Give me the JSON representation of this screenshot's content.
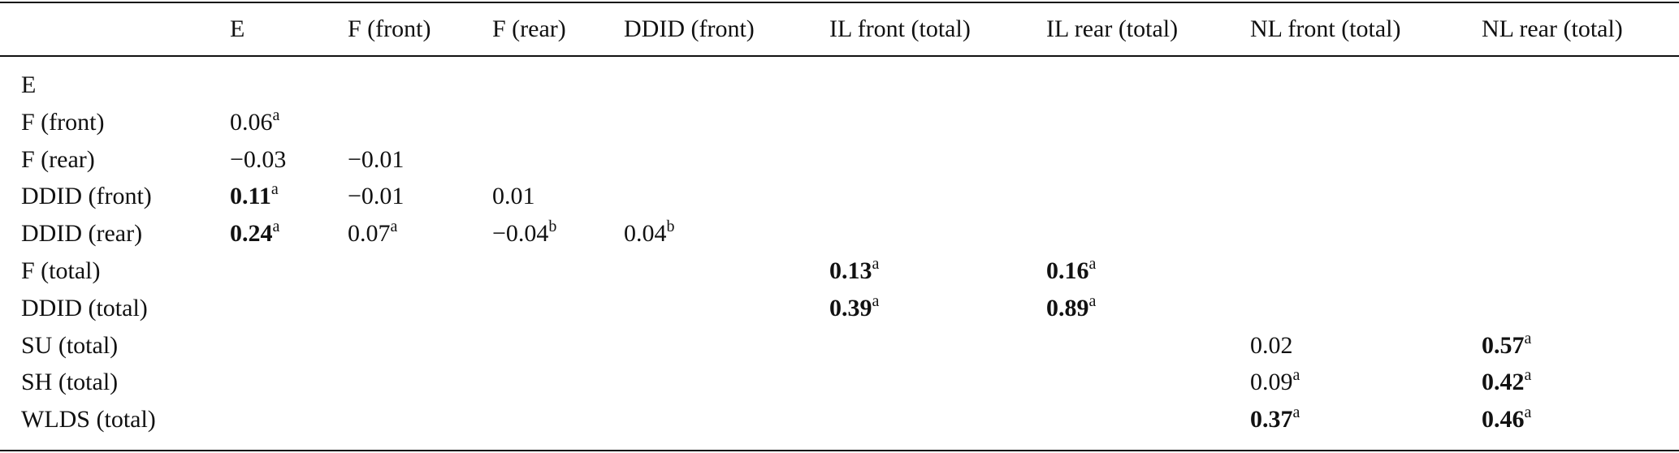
{
  "table": {
    "columns": [
      "E",
      "F (front)",
      "F (rear)",
      "DDID (front)",
      "IL front (total)",
      "IL rear (total)",
      "NL front (total)",
      "NL rear (total)"
    ],
    "rows": [
      {
        "label": "E",
        "cells": [
          null,
          null,
          null,
          null,
          null,
          null,
          null,
          null
        ]
      },
      {
        "label": "F (front)",
        "cells": [
          {
            "value": "0.06",
            "sup": "a",
            "bold": false
          },
          null,
          null,
          null,
          null,
          null,
          null,
          null
        ]
      },
      {
        "label": "F (rear)",
        "cells": [
          {
            "value": "−0.03",
            "bold": false
          },
          {
            "value": "−0.01",
            "bold": false
          },
          null,
          null,
          null,
          null,
          null,
          null
        ]
      },
      {
        "label": "DDID (front)",
        "cells": [
          {
            "value": "0.11",
            "sup": "a",
            "bold": true
          },
          {
            "value": "−0.01",
            "bold": false
          },
          {
            "value": "0.01",
            "bold": false
          },
          null,
          null,
          null,
          null,
          null
        ]
      },
      {
        "label": "DDID (rear)",
        "cells": [
          {
            "value": "0.24",
            "sup": "a",
            "bold": true
          },
          {
            "value": "0.07",
            "sup": "a",
            "bold": false
          },
          {
            "value": "−0.04",
            "sup": "b",
            "bold": false
          },
          {
            "value": "0.04",
            "sup": "b",
            "bold": false
          },
          null,
          null,
          null,
          null
        ]
      },
      {
        "label": "F (total)",
        "cells": [
          null,
          null,
          null,
          null,
          {
            "value": "0.13",
            "sup": "a",
            "bold": true
          },
          {
            "value": "0.16",
            "sup": "a",
            "bold": true
          },
          null,
          null
        ]
      },
      {
        "label": "DDID (total)",
        "cells": [
          null,
          null,
          null,
          null,
          {
            "value": "0.39",
            "sup": "a",
            "bold": true
          },
          {
            "value": "0.89",
            "sup": "a",
            "bold": true
          },
          null,
          null
        ]
      },
      {
        "label": "SU (total)",
        "cells": [
          null,
          null,
          null,
          null,
          null,
          null,
          {
            "value": "0.02",
            "bold": false
          },
          {
            "value": "0.57",
            "sup": "a",
            "bold": true
          }
        ]
      },
      {
        "label": "SH (total)",
        "cells": [
          null,
          null,
          null,
          null,
          null,
          null,
          {
            "value": "0.09",
            "sup": "a",
            "bold": false
          },
          {
            "value": "0.42",
            "sup": "a",
            "bold": true
          }
        ]
      },
      {
        "label": "WLDS (total)",
        "cells": [
          null,
          null,
          null,
          null,
          null,
          null,
          {
            "value": "0.37",
            "sup": "a",
            "bold": true
          },
          {
            "value": "0.46",
            "sup": "a",
            "bold": true
          }
        ]
      }
    ]
  }
}
